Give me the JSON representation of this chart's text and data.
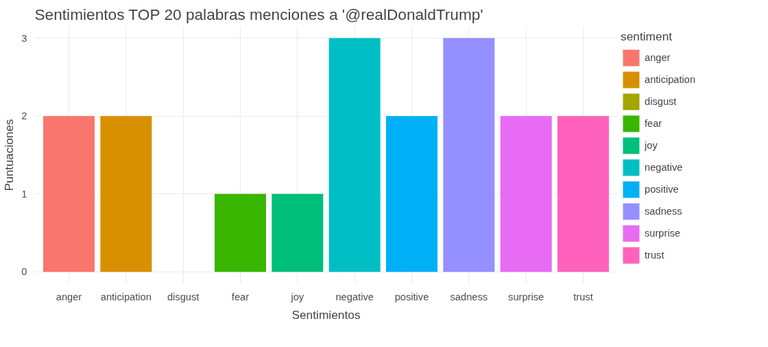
{
  "chart_data": {
    "type": "bar",
    "title": "Sentimientos TOP 20 palabras menciones a '@realDonaldTrump'",
    "xlabel": "Sentimientos",
    "ylabel": "Puntuaciones",
    "legend_title": "sentiment",
    "categories": [
      "anger",
      "anticipation",
      "disgust",
      "fear",
      "joy",
      "negative",
      "positive",
      "sadness",
      "surprise",
      "trust"
    ],
    "series": [
      {
        "name": "anger",
        "color": "#f8766d",
        "values": [
          2,
          null,
          null,
          null,
          null,
          null,
          null,
          null,
          null,
          null
        ]
      },
      {
        "name": "anticipation",
        "color": "#d89000",
        "values": [
          null,
          2,
          null,
          null,
          null,
          null,
          null,
          null,
          null,
          null
        ]
      },
      {
        "name": "disgust",
        "color": "#a3a500",
        "values": [
          null,
          null,
          0,
          null,
          null,
          null,
          null,
          null,
          null,
          null
        ]
      },
      {
        "name": "fear",
        "color": "#39b600",
        "values": [
          null,
          null,
          null,
          1,
          null,
          null,
          null,
          null,
          null,
          null
        ]
      },
      {
        "name": "joy",
        "color": "#00bf7d",
        "values": [
          null,
          null,
          null,
          null,
          1,
          null,
          null,
          null,
          null,
          null
        ]
      },
      {
        "name": "negative",
        "color": "#00bfc4",
        "values": [
          null,
          null,
          null,
          null,
          null,
          3,
          null,
          null,
          null,
          null
        ]
      },
      {
        "name": "positive",
        "color": "#00b0f6",
        "values": [
          null,
          null,
          null,
          null,
          null,
          null,
          2,
          null,
          null,
          null
        ]
      },
      {
        "name": "sadness",
        "color": "#9590ff",
        "values": [
          null,
          null,
          null,
          null,
          null,
          null,
          null,
          3,
          null,
          null
        ]
      },
      {
        "name": "surprise",
        "color": "#e76bf3",
        "values": [
          null,
          null,
          null,
          null,
          null,
          null,
          null,
          null,
          2,
          null
        ]
      },
      {
        "name": "trust",
        "color": "#ff62bc",
        "values": [
          null,
          null,
          null,
          null,
          null,
          null,
          null,
          null,
          null,
          2
        ]
      }
    ],
    "ylim": [
      -0.15,
      3.15
    ],
    "yticks": [
      0,
      1,
      2,
      3
    ],
    "grid": true,
    "legend": "right"
  }
}
